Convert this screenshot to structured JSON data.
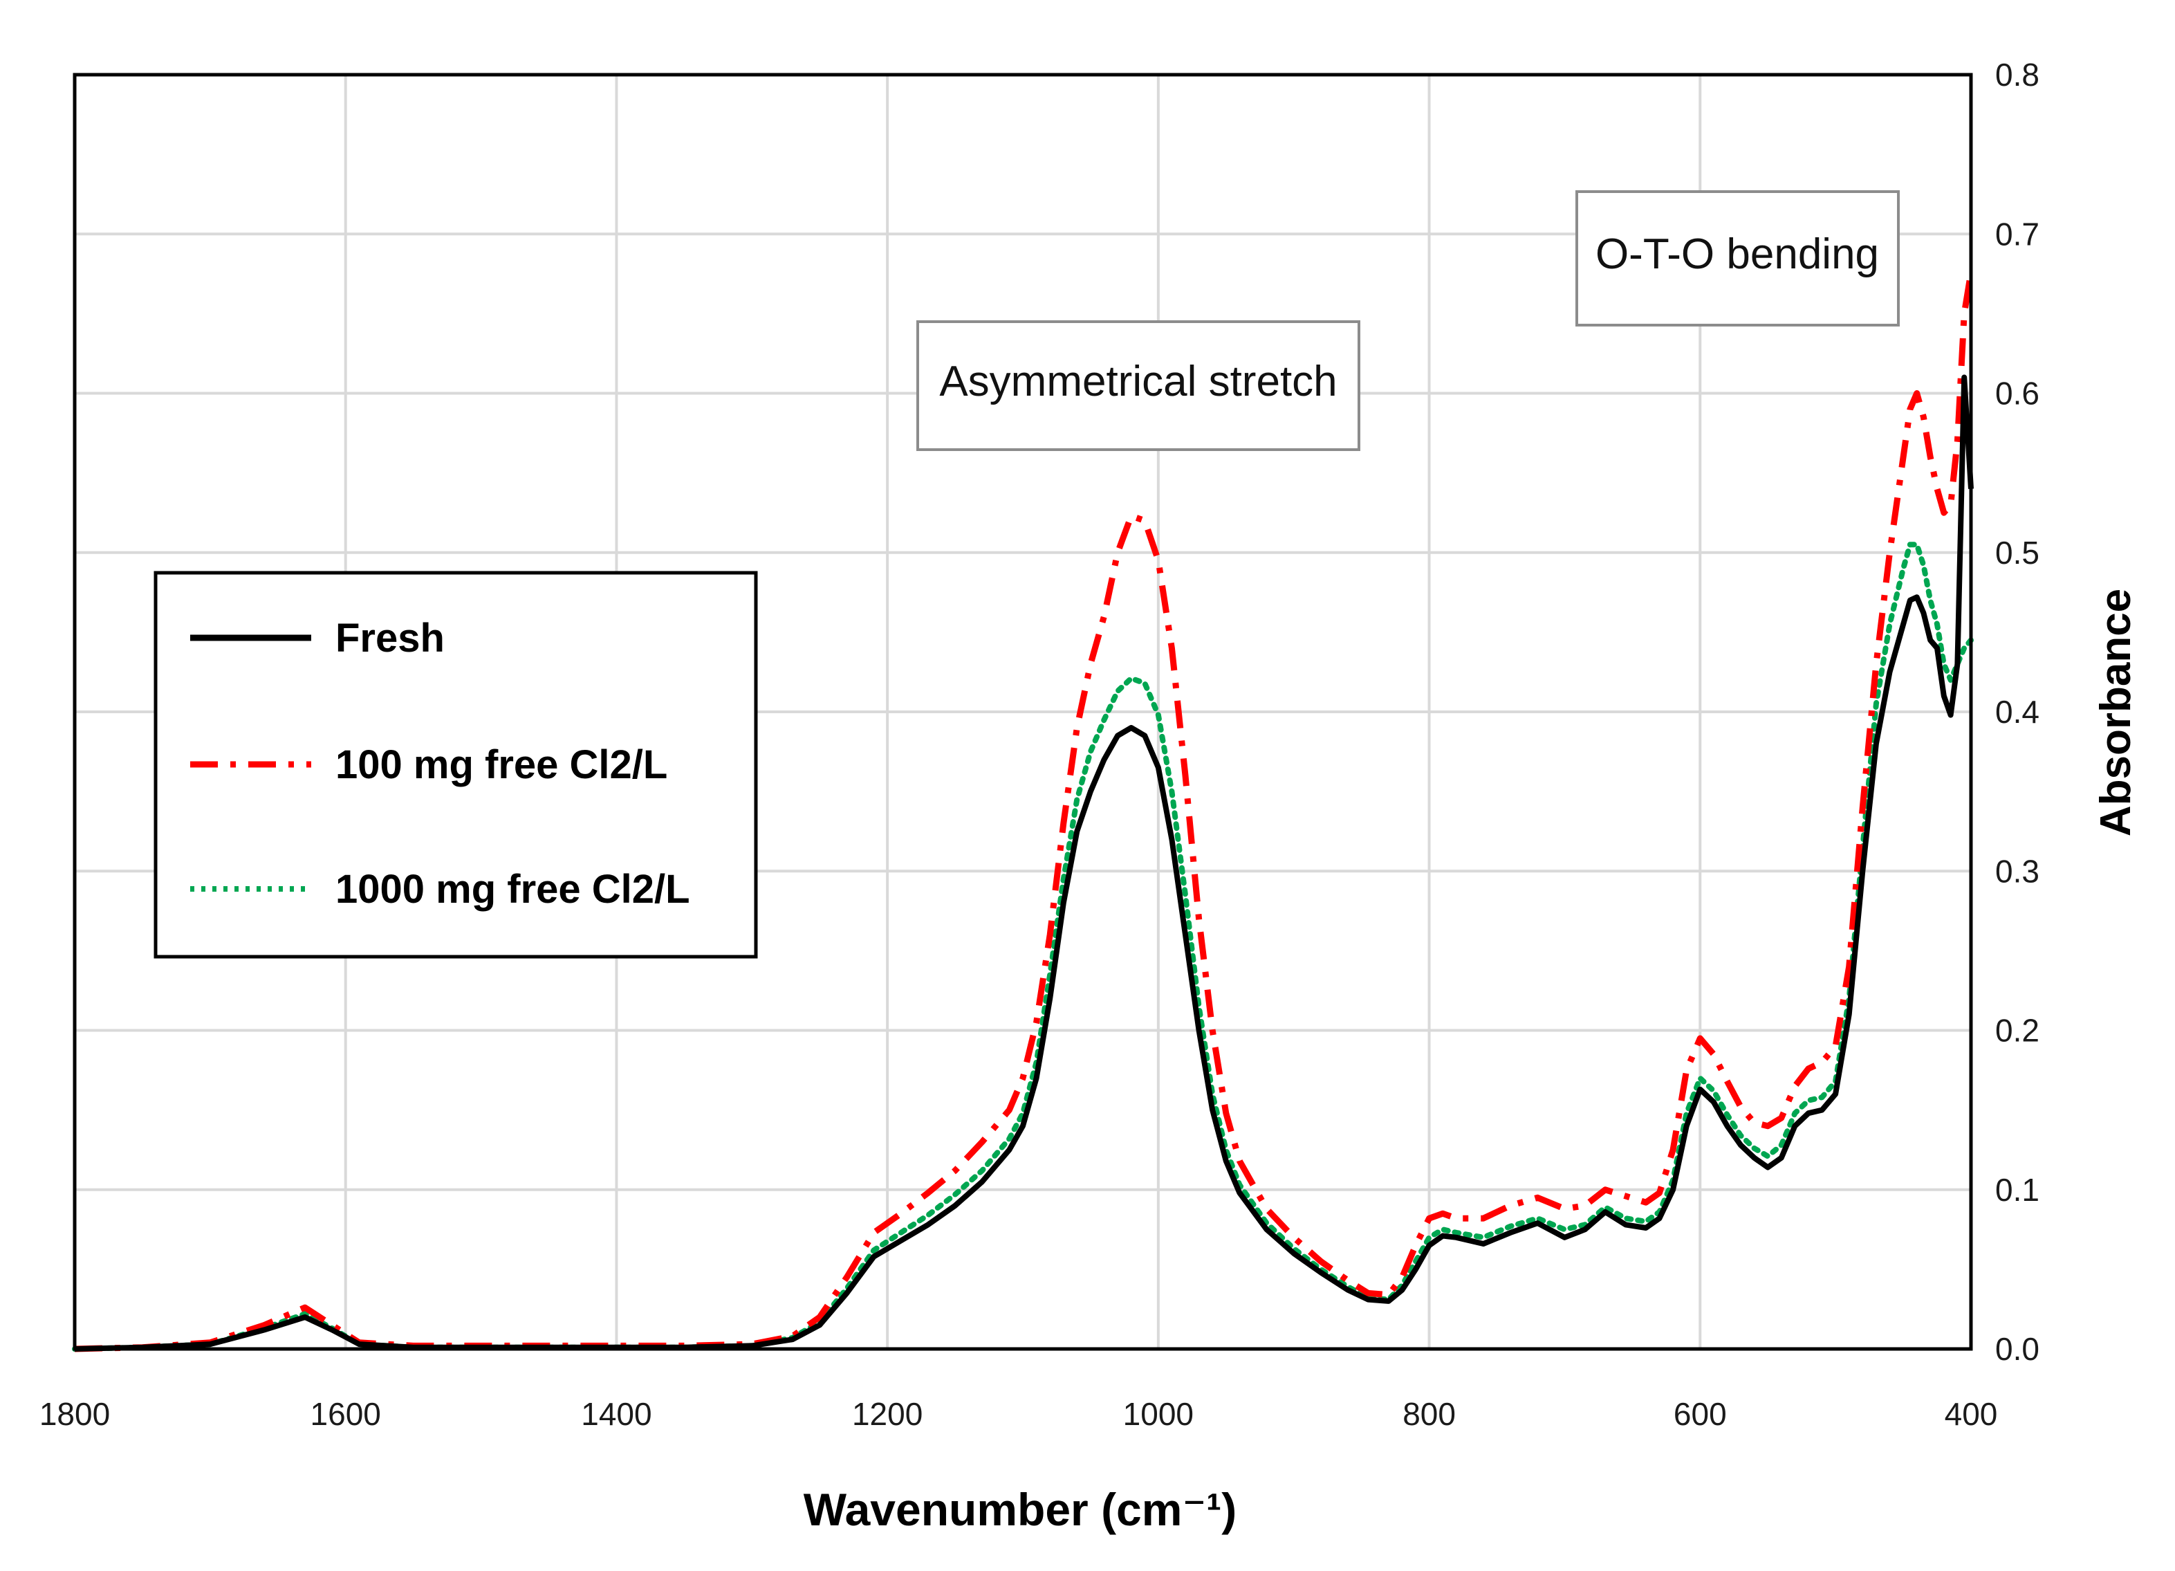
{
  "chart_data": {
    "type": "line",
    "title": "",
    "xlabel": "Wavenumber (cm⁻¹)",
    "ylabel": "Absorbance",
    "xlim": [
      1800,
      400
    ],
    "ylim": [
      0,
      0.8
    ],
    "x_ticks": [
      "1800",
      "1600",
      "1400",
      "1200",
      "1000",
      "800",
      "600",
      "400"
    ],
    "y_ticks": [
      "0.0",
      "0.1",
      "0.2",
      "0.3",
      "0.4",
      "0.5",
      "0.6",
      "0.7",
      "0.8"
    ],
    "grid": true,
    "legend_position": "left",
    "annotations": [
      {
        "text": "Asymmetrical stretch",
        "x": 1010,
        "y": 0.62
      },
      {
        "text": "O-T-O bending",
        "x": 570,
        "y": 0.69
      }
    ],
    "series": [
      {
        "name": "Fresh",
        "color": "#000000",
        "style": "solid",
        "points": [
          [
            1800,
            0.0
          ],
          [
            1750,
            0.001
          ],
          [
            1700,
            0.003
          ],
          [
            1660,
            0.012
          ],
          [
            1630,
            0.02
          ],
          [
            1610,
            0.012
          ],
          [
            1590,
            0.003
          ],
          [
            1550,
            0.001
          ],
          [
            1450,
            0.001
          ],
          [
            1350,
            0.001
          ],
          [
            1300,
            0.002
          ],
          [
            1270,
            0.006
          ],
          [
            1250,
            0.015
          ],
          [
            1230,
            0.035
          ],
          [
            1210,
            0.058
          ],
          [
            1190,
            0.068
          ],
          [
            1170,
            0.078
          ],
          [
            1150,
            0.09
          ],
          [
            1130,
            0.105
          ],
          [
            1110,
            0.125
          ],
          [
            1100,
            0.14
          ],
          [
            1090,
            0.17
          ],
          [
            1080,
            0.22
          ],
          [
            1070,
            0.28
          ],
          [
            1060,
            0.325
          ],
          [
            1050,
            0.35
          ],
          [
            1040,
            0.37
          ],
          [
            1030,
            0.385
          ],
          [
            1020,
            0.39
          ],
          [
            1010,
            0.385
          ],
          [
            1000,
            0.365
          ],
          [
            990,
            0.32
          ],
          [
            980,
            0.26
          ],
          [
            970,
            0.2
          ],
          [
            960,
            0.15
          ],
          [
            950,
            0.118
          ],
          [
            940,
            0.098
          ],
          [
            920,
            0.075
          ],
          [
            900,
            0.06
          ],
          [
            880,
            0.048
          ],
          [
            860,
            0.037
          ],
          [
            845,
            0.031
          ],
          [
            830,
            0.03
          ],
          [
            820,
            0.037
          ],
          [
            810,
            0.05
          ],
          [
            800,
            0.065
          ],
          [
            790,
            0.071
          ],
          [
            780,
            0.07
          ],
          [
            760,
            0.066
          ],
          [
            740,
            0.073
          ],
          [
            720,
            0.079
          ],
          [
            700,
            0.07
          ],
          [
            685,
            0.075
          ],
          [
            670,
            0.086
          ],
          [
            655,
            0.078
          ],
          [
            640,
            0.076
          ],
          [
            630,
            0.082
          ],
          [
            620,
            0.1
          ],
          [
            610,
            0.14
          ],
          [
            600,
            0.163
          ],
          [
            590,
            0.155
          ],
          [
            580,
            0.14
          ],
          [
            570,
            0.128
          ],
          [
            560,
            0.12
          ],
          [
            550,
            0.114
          ],
          [
            540,
            0.12
          ],
          [
            530,
            0.14
          ],
          [
            520,
            0.148
          ],
          [
            510,
            0.15
          ],
          [
            500,
            0.16
          ],
          [
            490,
            0.21
          ],
          [
            480,
            0.3
          ],
          [
            470,
            0.38
          ],
          [
            460,
            0.425
          ],
          [
            450,
            0.455
          ],
          [
            445,
            0.47
          ],
          [
            440,
            0.472
          ],
          [
            435,
            0.462
          ],
          [
            430,
            0.445
          ],
          [
            425,
            0.44
          ],
          [
            420,
            0.41
          ],
          [
            415,
            0.398
          ],
          [
            410,
            0.43
          ],
          [
            405,
            0.61
          ],
          [
            400,
            0.54
          ]
        ]
      },
      {
        "name": "100 mg free Cl2/L",
        "color": "#ff0000",
        "style": "dashdot",
        "points": [
          [
            1800,
            0.0
          ],
          [
            1750,
            0.001
          ],
          [
            1700,
            0.004
          ],
          [
            1660,
            0.015
          ],
          [
            1630,
            0.026
          ],
          [
            1610,
            0.015
          ],
          [
            1590,
            0.004
          ],
          [
            1550,
            0.002
          ],
          [
            1450,
            0.002
          ],
          [
            1350,
            0.002
          ],
          [
            1300,
            0.003
          ],
          [
            1270,
            0.008
          ],
          [
            1250,
            0.02
          ],
          [
            1230,
            0.045
          ],
          [
            1210,
            0.073
          ],
          [
            1190,
            0.085
          ],
          [
            1170,
            0.098
          ],
          [
            1150,
            0.112
          ],
          [
            1130,
            0.13
          ],
          [
            1110,
            0.15
          ],
          [
            1100,
            0.17
          ],
          [
            1090,
            0.205
          ],
          [
            1080,
            0.26
          ],
          [
            1070,
            0.33
          ],
          [
            1060,
            0.39
          ],
          [
            1050,
            0.43
          ],
          [
            1040,
            0.46
          ],
          [
            1030,
            0.5
          ],
          [
            1020,
            0.523
          ],
          [
            1010,
            0.52
          ],
          [
            1000,
            0.495
          ],
          [
            990,
            0.44
          ],
          [
            980,
            0.36
          ],
          [
            970,
            0.27
          ],
          [
            960,
            0.2
          ],
          [
            950,
            0.148
          ],
          [
            940,
            0.118
          ],
          [
            920,
            0.088
          ],
          [
            900,
            0.07
          ],
          [
            880,
            0.055
          ],
          [
            860,
            0.043
          ],
          [
            845,
            0.035
          ],
          [
            830,
            0.034
          ],
          [
            820,
            0.045
          ],
          [
            810,
            0.065
          ],
          [
            800,
            0.082
          ],
          [
            790,
            0.085
          ],
          [
            780,
            0.082
          ],
          [
            760,
            0.082
          ],
          [
            740,
            0.09
          ],
          [
            720,
            0.095
          ],
          [
            700,
            0.088
          ],
          [
            685,
            0.09
          ],
          [
            670,
            0.1
          ],
          [
            655,
            0.096
          ],
          [
            640,
            0.092
          ],
          [
            630,
            0.098
          ],
          [
            620,
            0.125
          ],
          [
            610,
            0.175
          ],
          [
            600,
            0.195
          ],
          [
            590,
            0.185
          ],
          [
            580,
            0.168
          ],
          [
            570,
            0.152
          ],
          [
            560,
            0.142
          ],
          [
            550,
            0.14
          ],
          [
            540,
            0.145
          ],
          [
            530,
            0.165
          ],
          [
            520,
            0.176
          ],
          [
            510,
            0.18
          ],
          [
            500,
            0.19
          ],
          [
            490,
            0.24
          ],
          [
            480,
            0.34
          ],
          [
            470,
            0.43
          ],
          [
            460,
            0.5
          ],
          [
            450,
            0.56
          ],
          [
            445,
            0.59
          ],
          [
            440,
            0.6
          ],
          [
            435,
            0.585
          ],
          [
            430,
            0.56
          ],
          [
            425,
            0.54
          ],
          [
            420,
            0.525
          ],
          [
            415,
            0.53
          ],
          [
            410,
            0.57
          ],
          [
            405,
            0.65
          ],
          [
            400,
            0.676
          ]
        ]
      },
      {
        "name": "1000 mg free Cl2/L",
        "color": "#00a651",
        "style": "dotted",
        "points": [
          [
            1800,
            0.0
          ],
          [
            1750,
            0.001
          ],
          [
            1700,
            0.003
          ],
          [
            1660,
            0.013
          ],
          [
            1630,
            0.022
          ],
          [
            1610,
            0.013
          ],
          [
            1590,
            0.003
          ],
          [
            1550,
            0.001
          ],
          [
            1450,
            0.001
          ],
          [
            1350,
            0.001
          ],
          [
            1300,
            0.002
          ],
          [
            1270,
            0.007
          ],
          [
            1250,
            0.017
          ],
          [
            1230,
            0.038
          ],
          [
            1210,
            0.062
          ],
          [
            1190,
            0.073
          ],
          [
            1170,
            0.084
          ],
          [
            1150,
            0.097
          ],
          [
            1130,
            0.112
          ],
          [
            1110,
            0.132
          ],
          [
            1100,
            0.148
          ],
          [
            1090,
            0.18
          ],
          [
            1080,
            0.235
          ],
          [
            1070,
            0.295
          ],
          [
            1060,
            0.345
          ],
          [
            1050,
            0.375
          ],
          [
            1040,
            0.395
          ],
          [
            1030,
            0.413
          ],
          [
            1020,
            0.421
          ],
          [
            1010,
            0.418
          ],
          [
            1000,
            0.398
          ],
          [
            990,
            0.35
          ],
          [
            980,
            0.285
          ],
          [
            970,
            0.215
          ],
          [
            960,
            0.16
          ],
          [
            950,
            0.125
          ],
          [
            940,
            0.103
          ],
          [
            920,
            0.079
          ],
          [
            900,
            0.063
          ],
          [
            880,
            0.05
          ],
          [
            860,
            0.039
          ],
          [
            845,
            0.032
          ],
          [
            830,
            0.031
          ],
          [
            820,
            0.04
          ],
          [
            810,
            0.055
          ],
          [
            800,
            0.07
          ],
          [
            790,
            0.075
          ],
          [
            780,
            0.073
          ],
          [
            760,
            0.07
          ],
          [
            740,
            0.077
          ],
          [
            720,
            0.082
          ],
          [
            700,
            0.075
          ],
          [
            685,
            0.078
          ],
          [
            670,
            0.089
          ],
          [
            655,
            0.082
          ],
          [
            640,
            0.08
          ],
          [
            630,
            0.086
          ],
          [
            620,
            0.106
          ],
          [
            610,
            0.148
          ],
          [
            600,
            0.17
          ],
          [
            590,
            0.162
          ],
          [
            580,
            0.147
          ],
          [
            570,
            0.134
          ],
          [
            560,
            0.126
          ],
          [
            550,
            0.121
          ],
          [
            540,
            0.128
          ],
          [
            530,
            0.148
          ],
          [
            520,
            0.156
          ],
          [
            510,
            0.158
          ],
          [
            500,
            0.168
          ],
          [
            490,
            0.22
          ],
          [
            480,
            0.315
          ],
          [
            470,
            0.405
          ],
          [
            460,
            0.455
          ],
          [
            450,
            0.49
          ],
          [
            445,
            0.505
          ],
          [
            440,
            0.505
          ],
          [
            435,
            0.492
          ],
          [
            430,
            0.47
          ],
          [
            425,
            0.455
          ],
          [
            420,
            0.43
          ],
          [
            415,
            0.42
          ],
          [
            410,
            0.43
          ],
          [
            405,
            0.44
          ],
          [
            400,
            0.445
          ]
        ]
      }
    ]
  }
}
